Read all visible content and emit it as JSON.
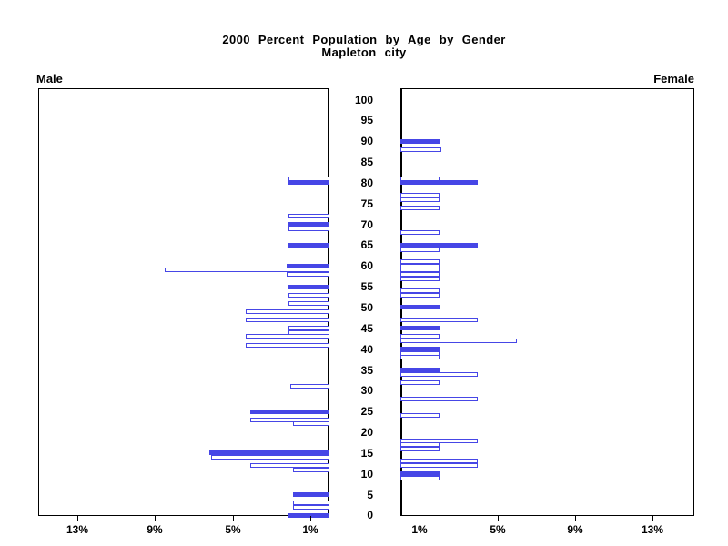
{
  "title": {
    "line1": "2000 Percent Population by Age by Gender",
    "line2": "Mapleton city"
  },
  "side_labels": {
    "left": "Male",
    "right": "Female"
  },
  "chart_data": {
    "type": "bar",
    "variant": "population-pyramid",
    "unit": "percent of population",
    "bar_color": "#4646E6",
    "age_axis": {
      "min": 0,
      "max": 100,
      "tick_step": 5
    },
    "pct_axis": {
      "xlim": [
        0,
        15
      ],
      "tick_percents": [
        1,
        5,
        9,
        13
      ],
      "tick_labels_left": [
        "13%",
        "9%",
        "5%",
        "1%"
      ],
      "tick_labels_right": [
        "1%",
        "5%",
        "9%",
        "13%"
      ]
    },
    "legend_note": "filled bars at ages that are multiples of 5, hollow bars at other single ages",
    "series": [
      {
        "name": "Male",
        "side": "left",
        "bars": [
          {
            "age": 81,
            "value": 2.1,
            "filled": false
          },
          {
            "age": 80,
            "value": 2.1,
            "filled": true
          },
          {
            "age": 72,
            "value": 2.1,
            "filled": false
          },
          {
            "age": 70,
            "value": 2.1,
            "filled": true
          },
          {
            "age": 69,
            "value": 2.1,
            "filled": false
          },
          {
            "age": 65,
            "value": 2.1,
            "filled": true
          },
          {
            "age": 60,
            "value": 2.2,
            "filled": true
          },
          {
            "age": 59,
            "value": 8.5,
            "filled": false
          },
          {
            "age": 58,
            "value": 2.2,
            "filled": false
          },
          {
            "age": 55,
            "value": 2.1,
            "filled": true
          },
          {
            "age": 53,
            "value": 2.1,
            "filled": false
          },
          {
            "age": 51,
            "value": 2.1,
            "filled": false
          },
          {
            "age": 49,
            "value": 4.3,
            "filled": false
          },
          {
            "age": 47,
            "value": 4.3,
            "filled": false
          },
          {
            "age": 45,
            "value": 2.1,
            "filled": false
          },
          {
            "age": 44,
            "value": 2.1,
            "filled": false
          },
          {
            "age": 43,
            "value": 4.3,
            "filled": false
          },
          {
            "age": 41,
            "value": 4.3,
            "filled": false
          },
          {
            "age": 31,
            "value": 2.0,
            "filled": false
          },
          {
            "age": 25,
            "value": 4.1,
            "filled": true
          },
          {
            "age": 23,
            "value": 4.1,
            "filled": false
          },
          {
            "age": 22,
            "value": 1.9,
            "filled": false
          },
          {
            "age": 15,
            "value": 6.2,
            "filled": true
          },
          {
            "age": 14,
            "value": 6.1,
            "filled": false
          },
          {
            "age": 12,
            "value": 4.1,
            "filled": false
          },
          {
            "age": 11,
            "value": 1.9,
            "filled": false
          },
          {
            "age": 5,
            "value": 1.9,
            "filled": true
          },
          {
            "age": 3,
            "value": 1.9,
            "filled": false
          },
          {
            "age": 2,
            "value": 1.9,
            "filled": false
          },
          {
            "age": 0,
            "value": 2.1,
            "filled": true
          }
        ]
      },
      {
        "name": "Female",
        "side": "right",
        "bars": [
          {
            "age": 90,
            "value": 2.0,
            "filled": true
          },
          {
            "age": 88,
            "value": 2.1,
            "filled": false
          },
          {
            "age": 81,
            "value": 2.0,
            "filled": false
          },
          {
            "age": 80,
            "value": 4.0,
            "filled": true
          },
          {
            "age": 77,
            "value": 2.0,
            "filled": false
          },
          {
            "age": 76,
            "value": 2.0,
            "filled": false
          },
          {
            "age": 74,
            "value": 2.0,
            "filled": false
          },
          {
            "age": 68,
            "value": 2.0,
            "filled": false
          },
          {
            "age": 65,
            "value": 4.0,
            "filled": true
          },
          {
            "age": 64,
            "value": 2.0,
            "filled": false
          },
          {
            "age": 61,
            "value": 2.0,
            "filled": false
          },
          {
            "age": 60,
            "value": 2.0,
            "filled": false
          },
          {
            "age": 59,
            "value": 2.0,
            "filled": false
          },
          {
            "age": 58,
            "value": 2.0,
            "filled": false
          },
          {
            "age": 57,
            "value": 2.0,
            "filled": false
          },
          {
            "age": 54,
            "value": 2.0,
            "filled": false
          },
          {
            "age": 53,
            "value": 2.0,
            "filled": false
          },
          {
            "age": 50,
            "value": 2.0,
            "filled": true
          },
          {
            "age": 47,
            "value": 4.0,
            "filled": false
          },
          {
            "age": 45,
            "value": 2.0,
            "filled": true
          },
          {
            "age": 43,
            "value": 2.0,
            "filled": false
          },
          {
            "age": 42,
            "value": 6.0,
            "filled": false
          },
          {
            "age": 40,
            "value": 2.0,
            "filled": true
          },
          {
            "age": 39,
            "value": 2.0,
            "filled": false
          },
          {
            "age": 38,
            "value": 2.0,
            "filled": false
          },
          {
            "age": 35,
            "value": 2.0,
            "filled": true
          },
          {
            "age": 34,
            "value": 4.0,
            "filled": false
          },
          {
            "age": 32,
            "value": 2.0,
            "filled": false
          },
          {
            "age": 28,
            "value": 4.0,
            "filled": false
          },
          {
            "age": 24,
            "value": 2.0,
            "filled": false
          },
          {
            "age": 18,
            "value": 4.0,
            "filled": false
          },
          {
            "age": 17,
            "value": 2.0,
            "filled": false
          },
          {
            "age": 16,
            "value": 2.0,
            "filled": false
          },
          {
            "age": 13,
            "value": 4.0,
            "filled": false
          },
          {
            "age": 12,
            "value": 4.0,
            "filled": false
          },
          {
            "age": 10,
            "value": 2.0,
            "filled": true
          },
          {
            "age": 9,
            "value": 2.0,
            "filled": false
          }
        ]
      }
    ]
  }
}
